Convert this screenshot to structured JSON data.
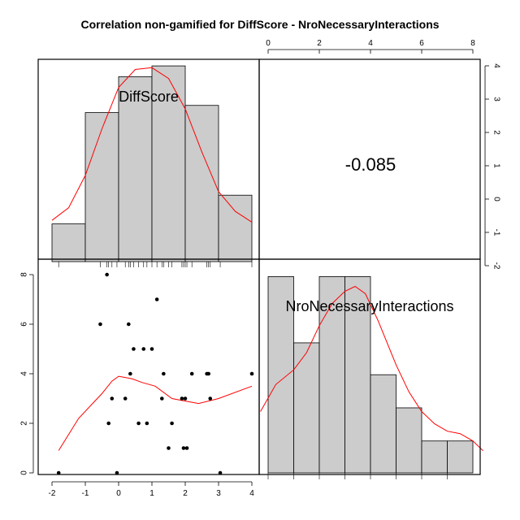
{
  "title": "Correlation non-gamified for DiffScore - NroNecessaryInteractions",
  "chart_data": {
    "type": "scatter",
    "variables": [
      "DiffScore",
      "NroNecessaryInteractions"
    ],
    "correlation": "-0.085",
    "diffscore_axis": {
      "ticks": [
        "-2",
        "-1",
        "0",
        "1",
        "2",
        "3",
        "4"
      ],
      "range": [
        -2,
        4
      ]
    },
    "interactions_axis": {
      "ticks": [
        "0",
        "2",
        "4",
        "6",
        "8"
      ],
      "range": [
        0,
        8
      ]
    },
    "points": [
      {
        "x": -1.8,
        "y": 0
      },
      {
        "x": -0.55,
        "y": 6
      },
      {
        "x": -0.35,
        "y": 8
      },
      {
        "x": -0.3,
        "y": 2
      },
      {
        "x": -0.2,
        "y": 3
      },
      {
        "x": -0.05,
        "y": 0
      },
      {
        "x": 0.2,
        "y": 3
      },
      {
        "x": 0.3,
        "y": 6
      },
      {
        "x": 0.35,
        "y": 4
      },
      {
        "x": 0.45,
        "y": 5
      },
      {
        "x": 0.6,
        "y": 2
      },
      {
        "x": 0.75,
        "y": 5
      },
      {
        "x": 0.85,
        "y": 2
      },
      {
        "x": 1.0,
        "y": 5
      },
      {
        "x": 1.15,
        "y": 7
      },
      {
        "x": 1.3,
        "y": 3
      },
      {
        "x": 1.35,
        "y": 4
      },
      {
        "x": 1.5,
        "y": 1
      },
      {
        "x": 1.6,
        "y": 2
      },
      {
        "x": 1.9,
        "y": 3
      },
      {
        "x": 1.95,
        "y": 1
      },
      {
        "x": 2.0,
        "y": 3
      },
      {
        "x": 2.05,
        "y": 1
      },
      {
        "x": 2.2,
        "y": 4
      },
      {
        "x": 2.65,
        "y": 4
      },
      {
        "x": 2.7,
        "y": 4
      },
      {
        "x": 2.75,
        "y": 3
      },
      {
        "x": 3.05,
        "y": 0
      },
      {
        "x": 4.0,
        "y": 4
      }
    ],
    "smooth_line": [
      {
        "x": -1.8,
        "y": 0.9
      },
      {
        "x": -1.2,
        "y": 2.2
      },
      {
        "x": -0.5,
        "y": 3.2
      },
      {
        "x": -0.2,
        "y": 3.7
      },
      {
        "x": 0.0,
        "y": 3.9
      },
      {
        "x": 0.4,
        "y": 3.8
      },
      {
        "x": 0.7,
        "y": 3.65
      },
      {
        "x": 1.1,
        "y": 3.5
      },
      {
        "x": 1.6,
        "y": 3.0
      },
      {
        "x": 2.0,
        "y": 2.9
      },
      {
        "x": 2.4,
        "y": 2.8
      },
      {
        "x": 3.0,
        "y": 3.0
      },
      {
        "x": 4.0,
        "y": 3.5
      }
    ],
    "diffscore_hist": {
      "bins": [
        [
          -2,
          -1
        ],
        [
          -1,
          0
        ],
        [
          0,
          1
        ],
        [
          1,
          2
        ],
        [
          2,
          3
        ],
        [
          3,
          4
        ]
      ],
      "heights": [
        1.05,
        4.15,
        5.15,
        5.45,
        4.35,
        1.85
      ]
    },
    "diffscore_density": [
      {
        "x": -2.0,
        "y": 1.15
      },
      {
        "x": -1.5,
        "y": 1.5
      },
      {
        "x": -1.0,
        "y": 2.4
      },
      {
        "x": -0.5,
        "y": 3.7
      },
      {
        "x": 0.0,
        "y": 4.85
      },
      {
        "x": 0.5,
        "y": 5.35
      },
      {
        "x": 1.0,
        "y": 5.4
      },
      {
        "x": 1.5,
        "y": 5.1
      },
      {
        "x": 2.0,
        "y": 4.25
      },
      {
        "x": 2.5,
        "y": 3.05
      },
      {
        "x": 3.0,
        "y": 1.95
      },
      {
        "x": 3.5,
        "y": 1.4
      },
      {
        "x": 4.0,
        "y": 1.1
      }
    ],
    "diffscore_rug": [
      -1.8,
      -0.55,
      -0.35,
      -0.3,
      -0.2,
      -0.05,
      0.2,
      0.3,
      0.35,
      0.45,
      0.6,
      0.75,
      0.85,
      1.0,
      1.15,
      1.3,
      1.35,
      1.5,
      1.6,
      1.9,
      1.95,
      2.0,
      2.05,
      2.2,
      2.65,
      2.7,
      2.75,
      3.05,
      4.0
    ],
    "interactions_hist": {
      "bins": [
        [
          0,
          1
        ],
        [
          1,
          2
        ],
        [
          2,
          3
        ],
        [
          3,
          4
        ],
        [
          4,
          5
        ],
        [
          5,
          6
        ],
        [
          6,
          7
        ],
        [
          7,
          8
        ]
      ],
      "heights": [
        8,
        5.3,
        8,
        8,
        4,
        2.65,
        1.3,
        1.3
      ]
    },
    "interactions_density": [
      {
        "x": -0.3,
        "y": 2.5
      },
      {
        "x": 0.3,
        "y": 3.6
      },
      {
        "x": 1.0,
        "y": 4.2
      },
      {
        "x": 1.5,
        "y": 4.9
      },
      {
        "x": 2.0,
        "y": 6.0
      },
      {
        "x": 2.5,
        "y": 6.9
      },
      {
        "x": 3.0,
        "y": 7.4
      },
      {
        "x": 3.4,
        "y": 7.6
      },
      {
        "x": 3.8,
        "y": 7.3
      },
      {
        "x": 4.3,
        "y": 6.2
      },
      {
        "x": 5.0,
        "y": 4.4
      },
      {
        "x": 5.5,
        "y": 3.3
      },
      {
        "x": 6.0,
        "y": 2.5
      },
      {
        "x": 6.5,
        "y": 2.0
      },
      {
        "x": 7.0,
        "y": 1.7
      },
      {
        "x": 7.5,
        "y": 1.6
      },
      {
        "x": 8.0,
        "y": 1.3
      },
      {
        "x": 8.4,
        "y": 0.9
      }
    ]
  }
}
